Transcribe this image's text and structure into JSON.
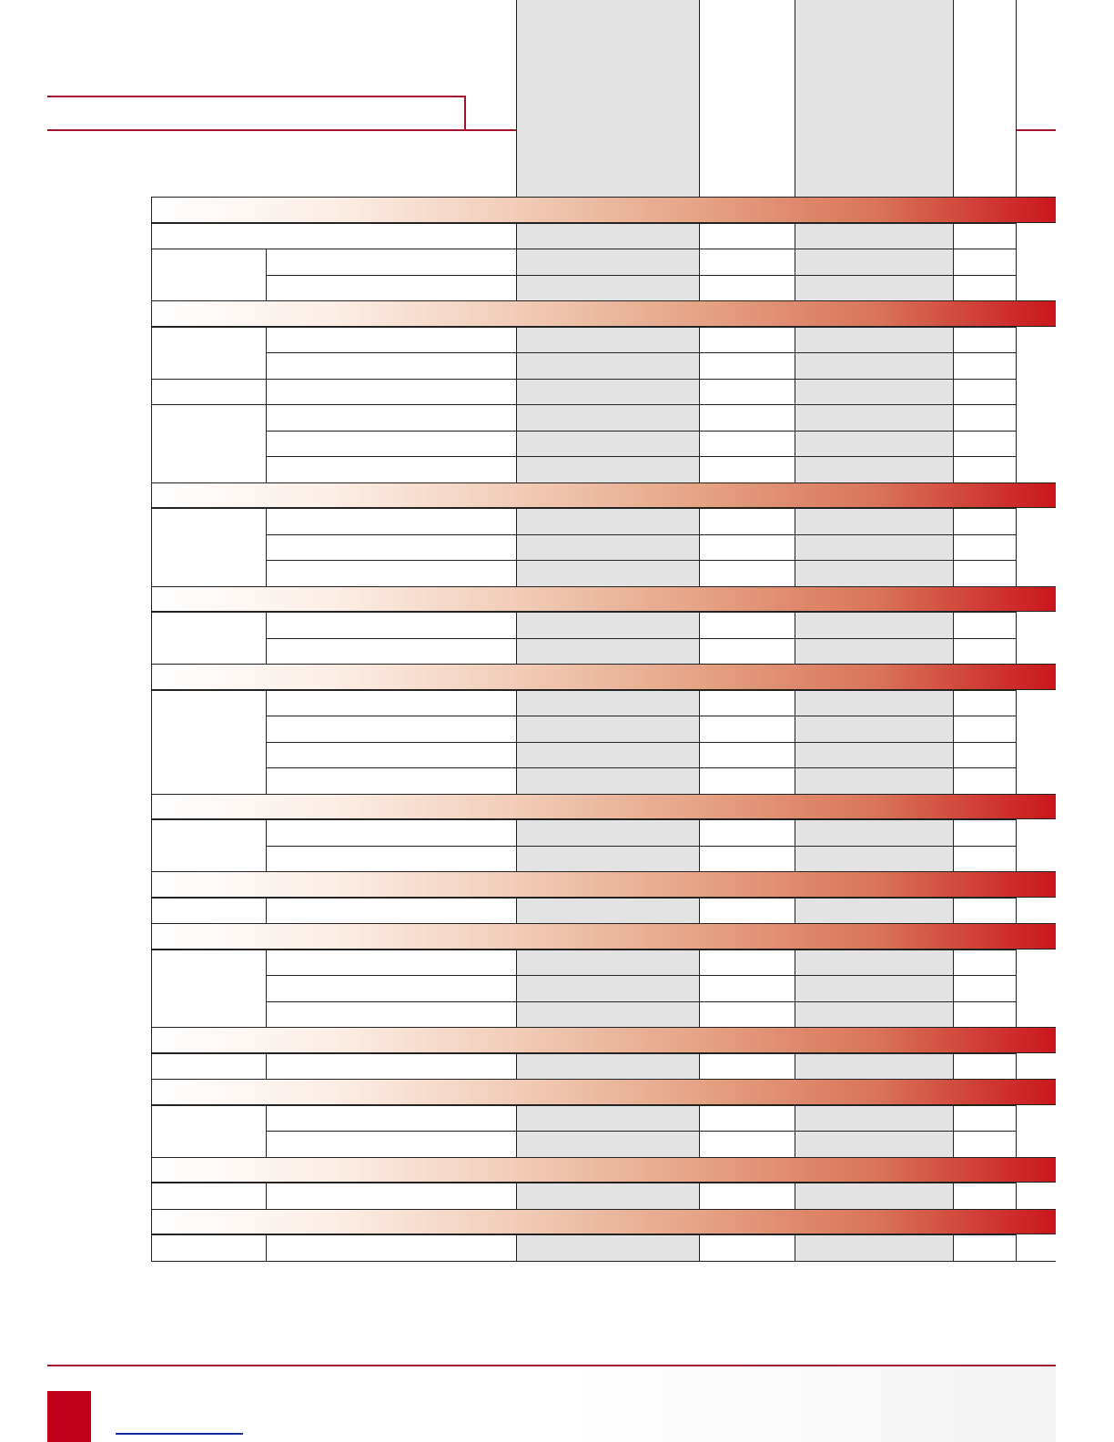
{
  "colors": {
    "accent": "#a3122e",
    "footer_block": "#c0001a",
    "shaded_column": "#e3e3e3",
    "link_underline": "#1a2ea0"
  },
  "table": {
    "sections": [
      {
        "groups": [
          1,
          2
        ],
        "first_merged": true
      },
      {
        "groups": [
          2,
          1,
          3
        ]
      },
      {
        "groups": [
          3
        ]
      },
      {
        "groups": [
          2
        ]
      },
      {
        "groups": [
          4
        ]
      },
      {
        "groups": [
          2
        ]
      },
      {
        "groups": [
          1
        ]
      },
      {
        "groups": [
          3
        ]
      },
      {
        "groups": [
          1
        ]
      },
      {
        "groups": [
          2
        ]
      },
      {
        "groups": [
          1
        ]
      },
      {
        "groups": [
          1
        ]
      }
    ]
  }
}
